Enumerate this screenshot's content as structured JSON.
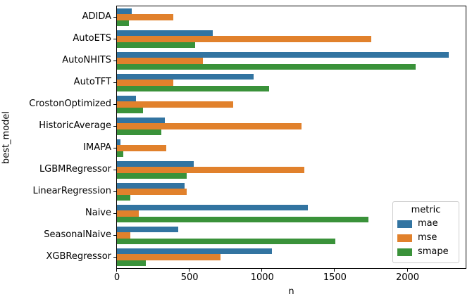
{
  "chart_data": {
    "type": "bar",
    "orientation": "horizontal",
    "xlabel": "n",
    "ylabel": "best_model",
    "xlim": [
      0,
      2400
    ],
    "xticks": [
      0,
      500,
      1000,
      1500,
      2000
    ],
    "grid": false,
    "legend_title": "metric",
    "legend_position": "lower-right-inside",
    "categories": [
      "ADIDA",
      "AutoETS",
      "AutoNHITS",
      "AutoTFT",
      "CrostonOptimized",
      "HistoricAverage",
      "IMAPA",
      "LGBMRegressor",
      "LinearRegression",
      "Naive",
      "SeasonalNaive",
      "XGBRegressor"
    ],
    "series": [
      {
        "name": "mae",
        "color": "#3274a1",
        "values": [
          100,
          660,
          2285,
          940,
          130,
          330,
          25,
          530,
          465,
          1315,
          420,
          1065
        ]
      },
      {
        "name": "mse",
        "color": "#e1812c",
        "values": [
          390,
          1750,
          590,
          390,
          800,
          1270,
          340,
          1290,
          480,
          150,
          90,
          715
        ]
      },
      {
        "name": "smape",
        "color": "#3a923a",
        "values": [
          80,
          540,
          2055,
          1045,
          180,
          305,
          45,
          480,
          90,
          1730,
          1505,
          200
        ]
      }
    ]
  }
}
